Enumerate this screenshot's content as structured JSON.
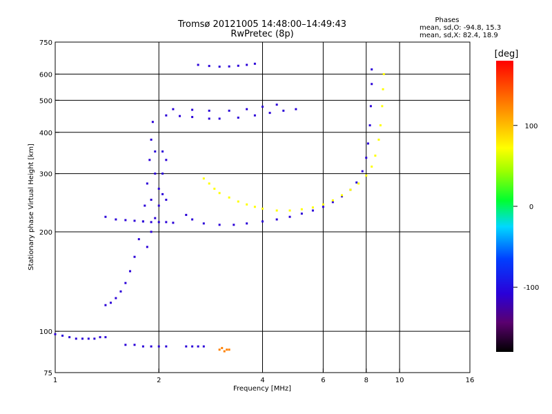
{
  "title_line1": "Tromsø 20121005 14:48:00–14:49:43",
  "title_line2": "RwPretec (8p)",
  "phases": {
    "header": "Phases",
    "line1": "mean, sd,O: -94.8, 15.3",
    "line2": "mean, sd,X:  82.4, 18.9"
  },
  "chart_data": {
    "type": "scatter",
    "xlabel": "Frequency [MHz]",
    "ylabel": "Stationary phase Virtual Height [km]",
    "xscale": "log",
    "yscale": "log",
    "xlim": [
      1,
      16
    ],
    "ylim": [
      75,
      750
    ],
    "x_ticks": [
      {
        "value": 1,
        "label": "1"
      },
      {
        "value": 2,
        "label": "2"
      },
      {
        "value": 4,
        "label": "4"
      },
      {
        "value": 6,
        "label": "6"
      },
      {
        "value": 8,
        "label": "8"
      },
      {
        "value": 10,
        "label": "10"
      },
      {
        "value": 16,
        "label": "16"
      }
    ],
    "y_ticks": [
      {
        "value": 75,
        "label": "75"
      },
      {
        "value": 100,
        "label": "100"
      },
      {
        "value": 200,
        "label": "200"
      },
      {
        "value": 300,
        "label": "300"
      },
      {
        "value": 400,
        "label": "400"
      },
      {
        "value": 500,
        "label": "500"
      },
      {
        "value": 600,
        "label": "600"
      },
      {
        "value": 750,
        "label": "750"
      }
    ],
    "grid_x": [
      2,
      4,
      6,
      8,
      10
    ],
    "grid_y": [
      100,
      200,
      300,
      400,
      500,
      600
    ],
    "colorbar": {
      "label": "[deg]",
      "range": [
        -180,
        180
      ],
      "ticks": [
        {
          "value": 100,
          "label": "100"
        },
        {
          "value": 0,
          "label": "0"
        },
        {
          "value": -100,
          "label": "-100"
        }
      ]
    },
    "series": [
      {
        "mode": "O",
        "phase_deg": -100,
        "points": [
          [
            1.0,
            98
          ],
          [
            1.05,
            97
          ],
          [
            1.1,
            96
          ],
          [
            1.15,
            95
          ],
          [
            1.2,
            95
          ],
          [
            1.25,
            95
          ],
          [
            1.3,
            95
          ],
          [
            1.35,
            96
          ],
          [
            1.4,
            96
          ],
          [
            1.6,
            91
          ],
          [
            1.7,
            91
          ],
          [
            1.8,
            90
          ],
          [
            1.9,
            90
          ],
          [
            2.0,
            90
          ],
          [
            2.1,
            90
          ],
          [
            2.4,
            90
          ],
          [
            2.5,
            90
          ],
          [
            2.6,
            90
          ],
          [
            2.7,
            90
          ],
          [
            1.4,
            120
          ],
          [
            1.45,
            122
          ],
          [
            1.5,
            126
          ],
          [
            1.55,
            132
          ],
          [
            1.6,
            140
          ],
          [
            1.65,
            152
          ],
          [
            1.7,
            168
          ],
          [
            1.75,
            190
          ],
          [
            1.8,
            215
          ],
          [
            1.82,
            240
          ],
          [
            1.85,
            280
          ],
          [
            1.88,
            330
          ],
          [
            1.9,
            380
          ],
          [
            1.92,
            430
          ],
          [
            1.9,
            200
          ],
          [
            1.9,
            250
          ],
          [
            1.95,
            300
          ],
          [
            1.95,
            350
          ],
          [
            2.0,
            270
          ],
          [
            2.05,
            300
          ],
          [
            2.05,
            350
          ],
          [
            1.85,
            180
          ],
          [
            1.95,
            220
          ],
          [
            2.0,
            240
          ],
          [
            2.05,
            260
          ],
          [
            2.1,
            330
          ],
          [
            2.1,
            250
          ],
          [
            1.4,
            222
          ],
          [
            1.5,
            218
          ],
          [
            1.6,
            217
          ],
          [
            1.7,
            216
          ],
          [
            1.8,
            215
          ],
          [
            1.9,
            214
          ],
          [
            2.0,
            214
          ],
          [
            2.1,
            214
          ],
          [
            2.2,
            213
          ],
          [
            2.4,
            225
          ],
          [
            2.5,
            218
          ],
          [
            2.7,
            212
          ],
          [
            3.0,
            210
          ],
          [
            3.3,
            210
          ],
          [
            3.6,
            212
          ],
          [
            4.0,
            215
          ],
          [
            4.4,
            218
          ],
          [
            4.8,
            222
          ],
          [
            5.2,
            227
          ],
          [
            5.6,
            232
          ],
          [
            6.0,
            238
          ],
          [
            6.4,
            246
          ],
          [
            6.8,
            256
          ],
          [
            7.2,
            268
          ],
          [
            7.5,
            282
          ],
          [
            7.8,
            305
          ],
          [
            8.0,
            335
          ],
          [
            8.1,
            370
          ],
          [
            8.2,
            420
          ],
          [
            8.25,
            480
          ],
          [
            8.3,
            560
          ],
          [
            8.3,
            620
          ],
          [
            2.1,
            450
          ],
          [
            2.3,
            448
          ],
          [
            2.5,
            445
          ],
          [
            2.8,
            440
          ],
          [
            3.0,
            440
          ],
          [
            3.4,
            443
          ],
          [
            3.8,
            450
          ],
          [
            4.2,
            458
          ],
          [
            4.6,
            465
          ],
          [
            5.0,
            470
          ],
          [
            2.2,
            470
          ],
          [
            2.5,
            468
          ],
          [
            2.8,
            465
          ],
          [
            3.2,
            465
          ],
          [
            3.6,
            470
          ],
          [
            4.0,
            478
          ],
          [
            4.4,
            485
          ],
          [
            2.6,
            640
          ],
          [
            2.8,
            635
          ],
          [
            3.0,
            632
          ],
          [
            3.2,
            633
          ],
          [
            3.4,
            636
          ],
          [
            3.6,
            640
          ],
          [
            3.8,
            645
          ]
        ]
      },
      {
        "mode": "X",
        "phase_deg": 82,
        "points": [
          [
            2.7,
            290
          ],
          [
            2.8,
            280
          ],
          [
            2.9,
            270
          ],
          [
            3.0,
            262
          ],
          [
            3.2,
            254
          ],
          [
            3.4,
            247
          ],
          [
            3.6,
            242
          ],
          [
            3.8,
            238
          ],
          [
            4.0,
            235
          ],
          [
            4.4,
            232
          ],
          [
            4.8,
            232
          ],
          [
            5.2,
            234
          ],
          [
            5.6,
            237
          ],
          [
            6.0,
            242
          ],
          [
            6.4,
            249
          ],
          [
            6.8,
            258
          ],
          [
            7.2,
            268
          ],
          [
            7.6,
            280
          ],
          [
            8.0,
            296
          ],
          [
            8.3,
            315
          ],
          [
            8.5,
            340
          ],
          [
            8.7,
            380
          ],
          [
            8.8,
            420
          ],
          [
            8.9,
            480
          ],
          [
            8.95,
            540
          ],
          [
            9.0,
            600
          ]
        ]
      },
      {
        "mode": "E",
        "phase_deg": 150,
        "points": [
          [
            3.0,
            88
          ],
          [
            3.05,
            89
          ],
          [
            3.1,
            87
          ],
          [
            3.15,
            88
          ],
          [
            3.2,
            88
          ]
        ]
      }
    ]
  }
}
